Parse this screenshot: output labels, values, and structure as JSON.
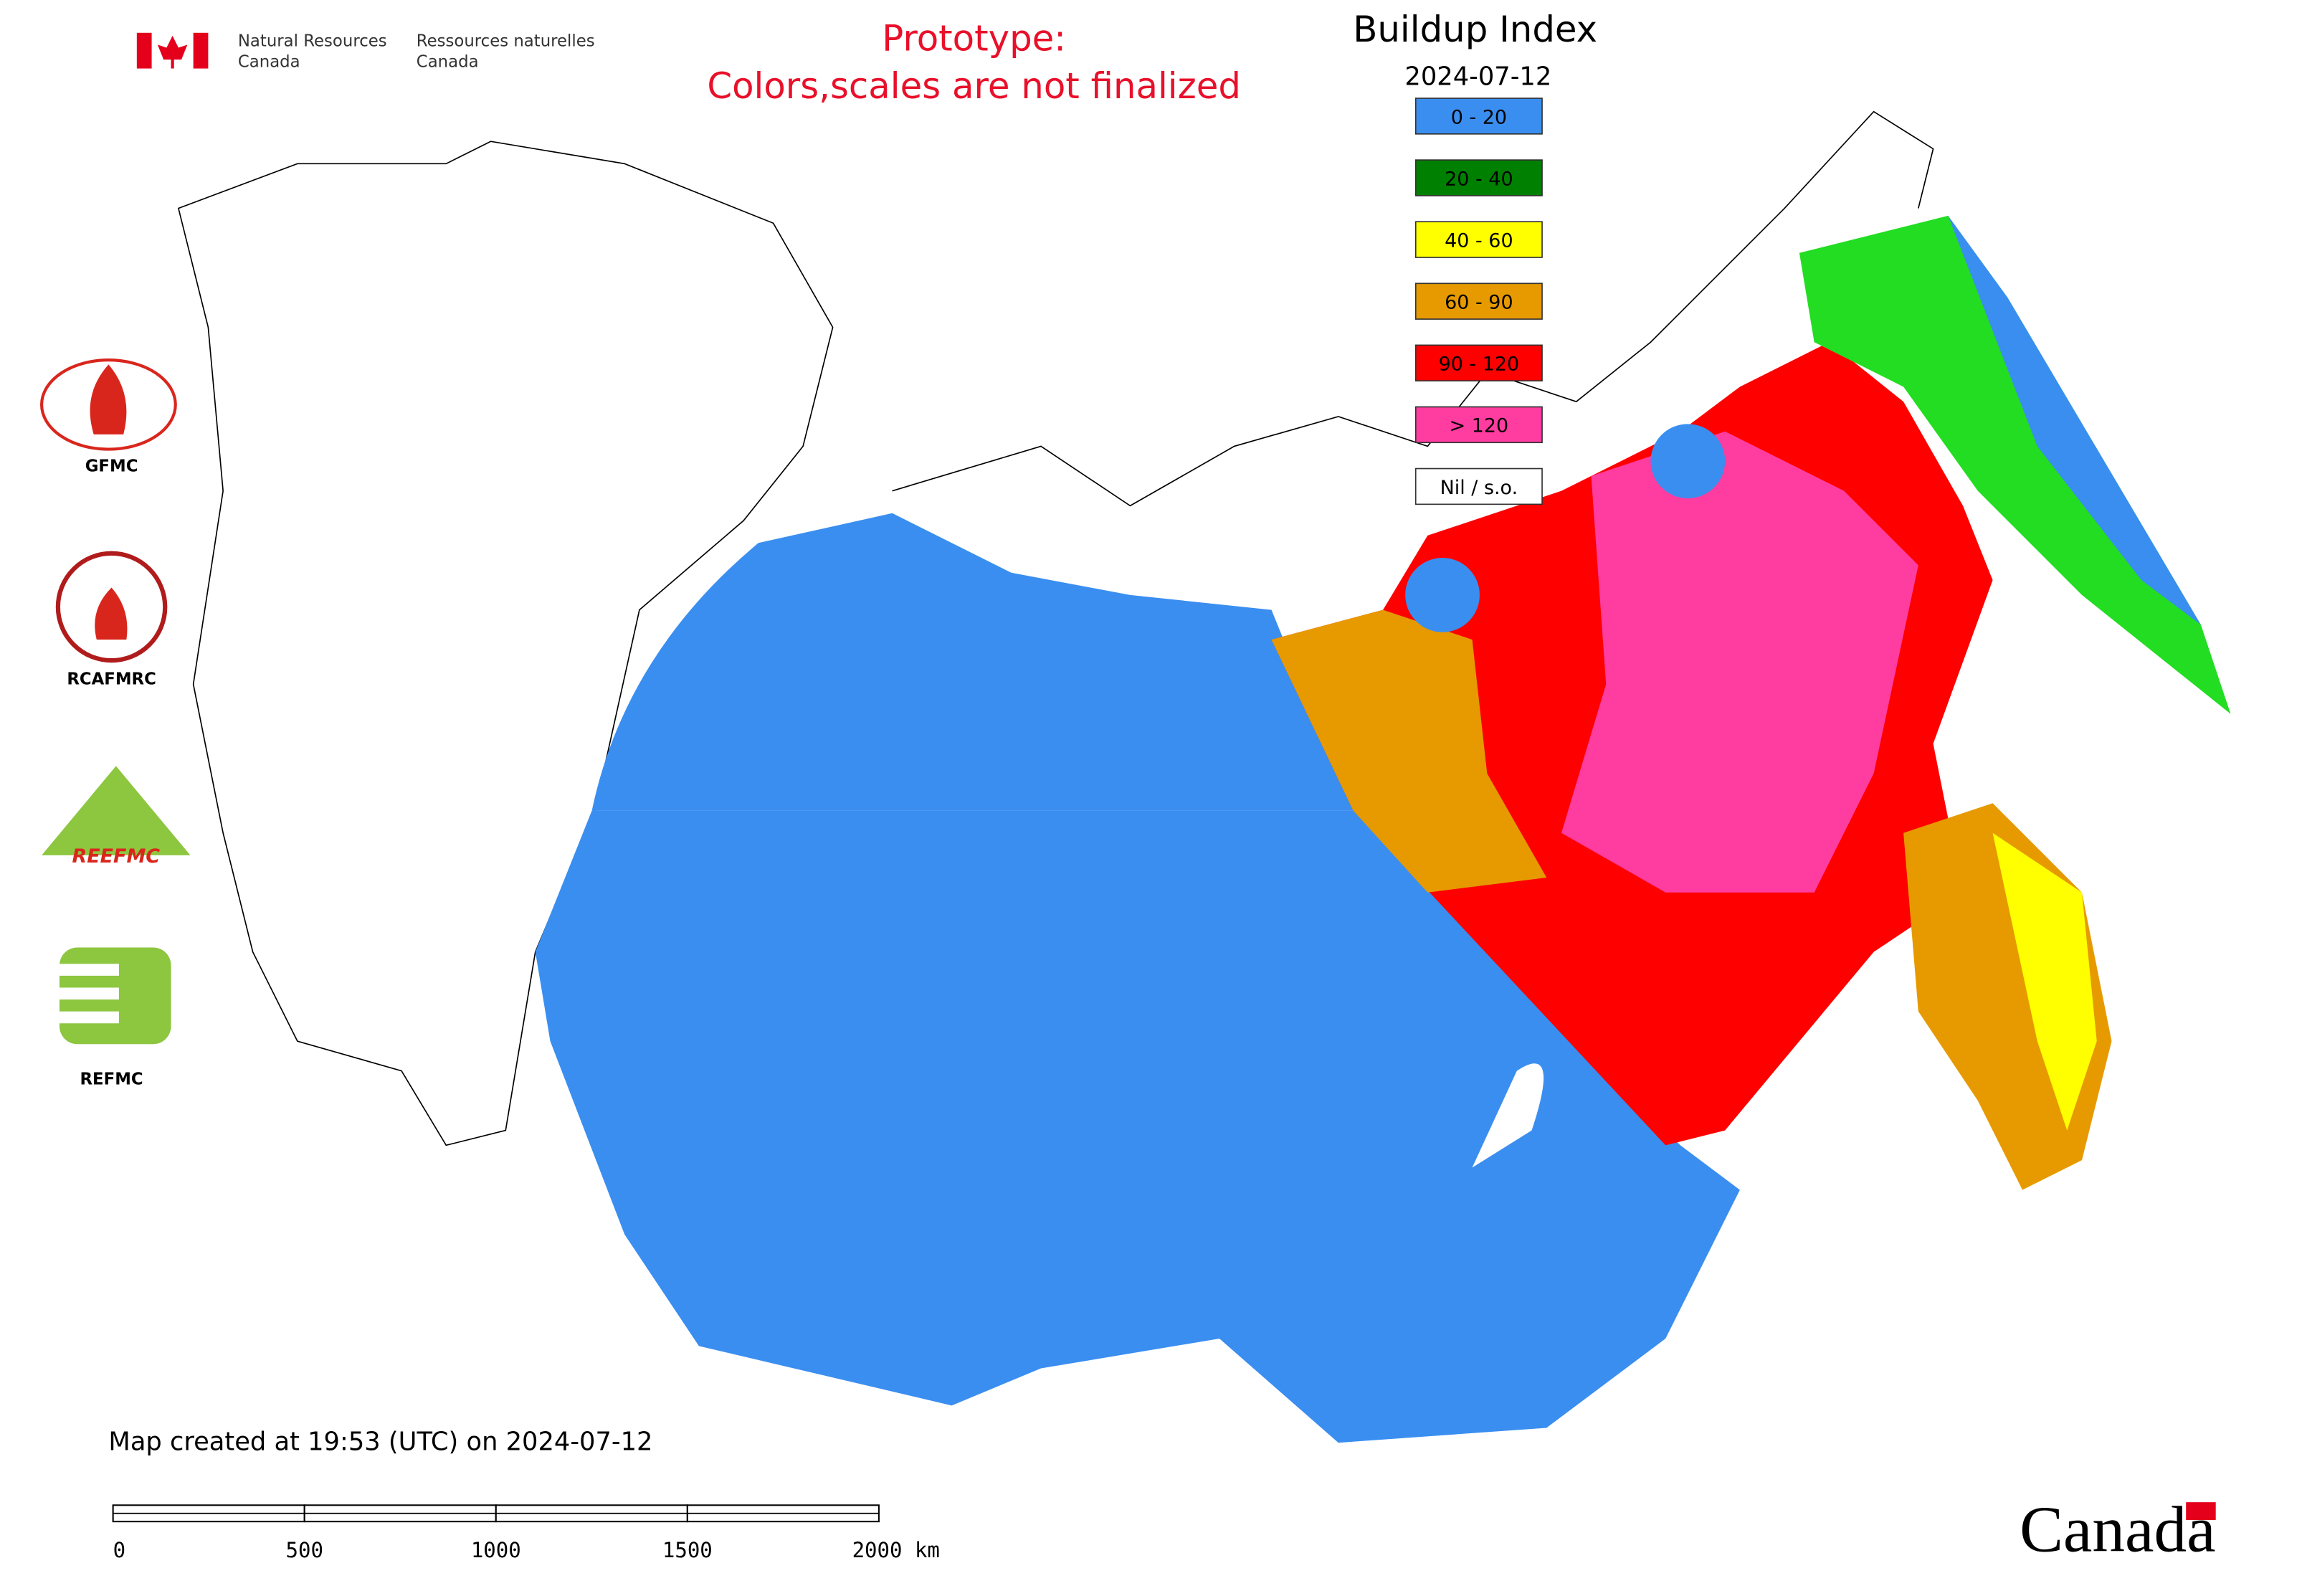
{
  "header": {
    "agency_en": [
      "Natural Resources",
      "Canada"
    ],
    "agency_fr": [
      "Ressources naturelles",
      "Canada"
    ]
  },
  "notice": [
    "Prototype:",
    "Colors,scales are not finalized"
  ],
  "legend": {
    "title": "Buildup Index",
    "date": "2024-07-12",
    "items": [
      {
        "label": "0 - 20",
        "color": "#3a8ef0"
      },
      {
        "label": "20 - 40",
        "color": "#008000"
      },
      {
        "label": "40 - 60",
        "color": "#ffff00"
      },
      {
        "label": "60 - 90",
        "color": "#e69a00"
      },
      {
        "label": "90 - 120",
        "color": "#ff0000"
      },
      {
        "label": "> 120",
        "color": "#ff3ca0"
      },
      {
        "label": "Nil / s.o.",
        "color": "#ffffff"
      }
    ]
  },
  "logos": [
    "GFMC",
    "RCAFMRC",
    "REEFMC",
    "REFMC"
  ],
  "footer": {
    "created": "Map created at 19:53 (UTC) on 2024-07-12",
    "scale_bar": [
      "0",
      "500",
      "1000",
      "1500",
      "2000 km"
    ]
  },
  "wordmark": "Canada"
}
